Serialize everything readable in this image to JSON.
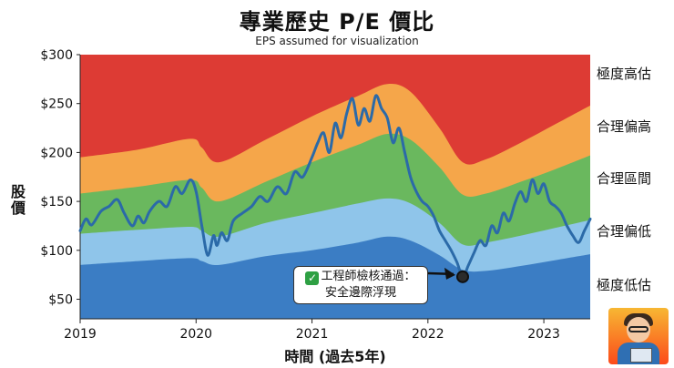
{
  "title": "專業歷史 P/E 價比",
  "subtitle": "EPS assumed for visualization",
  "ylabel": "股價",
  "xlabel": "時間 (過去5年)",
  "callout": {
    "line1": "工程師檢核通過：",
    "line2": "安全邊際浮現",
    "icon": "check-mark-icon"
  },
  "colors": {
    "band_extreme_low": "#3b7dc4",
    "band_fair_low": "#8fc5ea",
    "band_fair": "#6ab85e",
    "band_fair_high": "#f5a64a",
    "band_extreme_high": "#dd3b34",
    "price_line": "#2b6aa8"
  },
  "chart_data": {
    "type": "area",
    "x_ticks": [
      "2019",
      "2020",
      "2021",
      "2022",
      "2023"
    ],
    "y_ticks": [
      "$50",
      "$100",
      "$150",
      "$200",
      "$250",
      "$300"
    ],
    "xlim": [
      2019.0,
      2023.4
    ],
    "ylim": [
      30,
      300
    ],
    "band_labels": [
      "極度高估",
      "合理偏高",
      "合理區間",
      "合理偏低",
      "極度低估"
    ],
    "bands": {
      "x": [
        2019.0,
        2019.5,
        2019.95,
        2020.05,
        2020.2,
        2020.6,
        2021.0,
        2021.4,
        2021.65,
        2021.85,
        2022.1,
        2022.3,
        2022.5,
        2022.8,
        2023.1,
        2023.4
      ],
      "b1": [
        85,
        89,
        92,
        89,
        85,
        94,
        100,
        108,
        114,
        110,
        95,
        80,
        79,
        84,
        90,
        96
      ],
      "b2": [
        117,
        121,
        124,
        120,
        114,
        128,
        138,
        148,
        153,
        148,
        128,
        106,
        108,
        115,
        123,
        131
      ],
      "b3": [
        158,
        165,
        172,
        164,
        150,
        170,
        190,
        208,
        219,
        213,
        185,
        157,
        158,
        170,
        183,
        197
      ],
      "b4": [
        195,
        203,
        214,
        205,
        190,
        213,
        237,
        258,
        270,
        262,
        225,
        190,
        193,
        210,
        229,
        248
      ]
    },
    "series": [
      {
        "x": [
          2019.0,
          2019.05,
          2019.1,
          2019.18,
          2019.25,
          2019.32,
          2019.38,
          2019.45,
          2019.5,
          2019.55,
          2019.6,
          2019.68,
          2019.75,
          2019.82,
          2019.88,
          2019.95,
          2020.0,
          2020.05,
          2020.1,
          2020.15,
          2020.18,
          2020.22,
          2020.27,
          2020.32,
          2020.4,
          2020.48,
          2020.55,
          2020.62,
          2020.7,
          2020.78,
          2020.85,
          2020.92,
          2021.0,
          2021.05,
          2021.1,
          2021.15,
          2021.2,
          2021.25,
          2021.3,
          2021.35,
          2021.4,
          2021.45,
          2021.5,
          2021.55,
          2021.6,
          2021.65,
          2021.7,
          2021.75,
          2021.8,
          2021.85,
          2021.9,
          2021.95,
          2022.0,
          2022.05,
          2022.1,
          2022.15,
          2022.2,
          2022.25,
          2022.3,
          2022.35,
          2022.4,
          2022.45,
          2022.5,
          2022.55,
          2022.6,
          2022.65,
          2022.7,
          2022.75,
          2022.8,
          2022.85,
          2022.9,
          2022.95,
          2023.0,
          2023.05,
          2023.1,
          2023.15,
          2023.2,
          2023.25,
          2023.3,
          2023.35,
          2023.4
        ],
        "y": [
          120,
          132,
          126,
          140,
          145,
          152,
          138,
          125,
          135,
          128,
          140,
          150,
          145,
          165,
          158,
          172,
          160,
          125,
          95,
          115,
          105,
          118,
          110,
          130,
          138,
          145,
          155,
          150,
          165,
          158,
          180,
          175,
          195,
          210,
          220,
          200,
          230,
          215,
          240,
          255,
          228,
          245,
          232,
          258,
          245,
          235,
          210,
          225,
          200,
          175,
          160,
          150,
          145,
          135,
          120,
          110,
          100,
          88,
          73,
          85,
          98,
          110,
          105,
          125,
          118,
          138,
          130,
          148,
          160,
          150,
          172,
          158,
          168,
          150,
          145,
          138,
          125,
          115,
          108,
          120,
          132
        ]
      }
    ],
    "highlight_point": {
      "x": 2022.3,
      "y": 73
    }
  }
}
